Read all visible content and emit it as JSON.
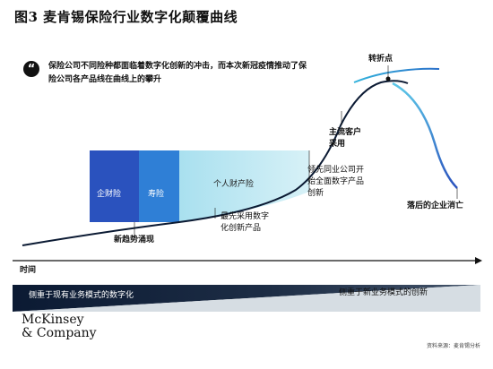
{
  "title": "图3 麦肯锡保险行业数字化颠覆曲线",
  "quote": {
    "icon": "quote-icon",
    "text": "保险公司不同险种都面临着数字化创新的冲击，而本次新冠疫情推动了保险公司各产品线在曲线上的攀升"
  },
  "bars": {
    "qicaixian": "企财险",
    "shouxian": "寿险",
    "geren": "个人财产险"
  },
  "labels": {
    "xinqushi": "新趋势涌现",
    "zuixian_line1": "最先采用数字",
    "zuixian_line2": "化创新产品",
    "lingxian_line1": "领先同业公司开",
    "lingxian_line2": "始全面数字产品",
    "lingxian_line3": "创新",
    "zhuliu_line1": "主流客户",
    "zhuliu_line2": "采用",
    "zhezhedian": "转折点",
    "luohou": "落后的企业消亡"
  },
  "axis": {
    "x_label": "时间"
  },
  "bottom_band": {
    "left_text": "侧重于现有业务模式的数字化",
    "right_text": "侧重于新业务模式的创新"
  },
  "brand": {
    "line1": "McKinsey",
    "line2": "& Company"
  },
  "source": "资料来源：麦肯锡分析",
  "colors": {
    "dark_navy": "#0b1a33",
    "royal_blue": "#2a52be",
    "mid_blue": "#2f7fd6",
    "light_teal": "#a9e0ef",
    "cyan_line": "#33b3dc",
    "band_gray": "#d6dde3"
  }
}
